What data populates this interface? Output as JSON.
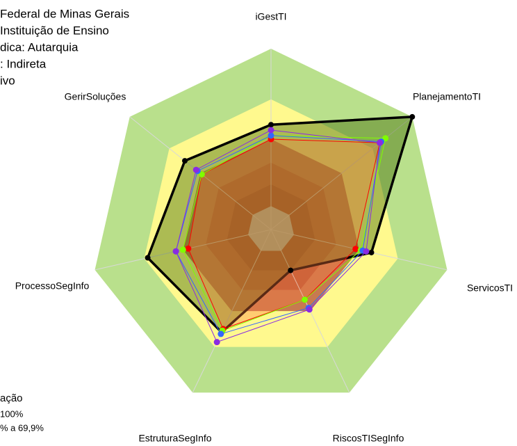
{
  "chart_data": {
    "type": "radar",
    "annotations": [
      "Federal de Minas Gerais",
      " Instituição de Ensino",
      "dica: Autarquia",
      ": Indireta",
      "ivo"
    ],
    "legend_texts": [
      "ação",
      "100%",
      "% a 69,9%"
    ],
    "categories": [
      "iGestTI",
      "PlanejamentoTI",
      "ServicosTI",
      "RiscosTISegInfo",
      "EstruturaSegInfo",
      "ProcessoSegInfo",
      "GerirSoluções"
    ],
    "rlim": [
      0,
      1
    ],
    "bands": [
      {
        "value": 1,
        "color": "#b9e08c"
      },
      {
        "value": 0.72,
        "color": "#fff98e"
      },
      {
        "value": 0.5,
        "color": "#c77a50"
      },
      {
        "value": 0.37,
        "color": "#b65a3a"
      },
      {
        "value": 0.25,
        "color": "#a3432b"
      },
      {
        "value": 0.13,
        "color": "#c0c0c0"
      }
    ],
    "series": [
      {
        "color": "#000000",
        "fill": "rgba(70,110,10,0.45)",
        "width": 3.5,
        "values": [
          0.58,
          1.0,
          0.57,
          0.25,
          0.63,
          0.7,
          0.61
        ]
      },
      {
        "color": "#ff0000",
        "fill": "rgba(255,120,60,0.35)",
        "width": 1,
        "values": [
          0.5,
          0.77,
          0.48,
          0.43,
          0.61,
          0.47,
          0.49
        ]
      },
      {
        "color": "#7fff00",
        "fill": "none",
        "width": 1,
        "values": [
          0.52,
          0.81,
          0.51,
          0.43,
          0.62,
          0.5,
          0.49
        ]
      },
      {
        "color": "#3366ff",
        "fill": "none",
        "width": 1,
        "values": [
          0.52,
          0.78,
          0.52,
          0.48,
          0.64,
          0.54,
          0.52
        ]
      },
      {
        "color": "#8a2be2",
        "fill": "none",
        "width": 1,
        "values": [
          0.55,
          0.77,
          0.54,
          0.49,
          0.69,
          0.54,
          0.53
        ]
      }
    ]
  }
}
